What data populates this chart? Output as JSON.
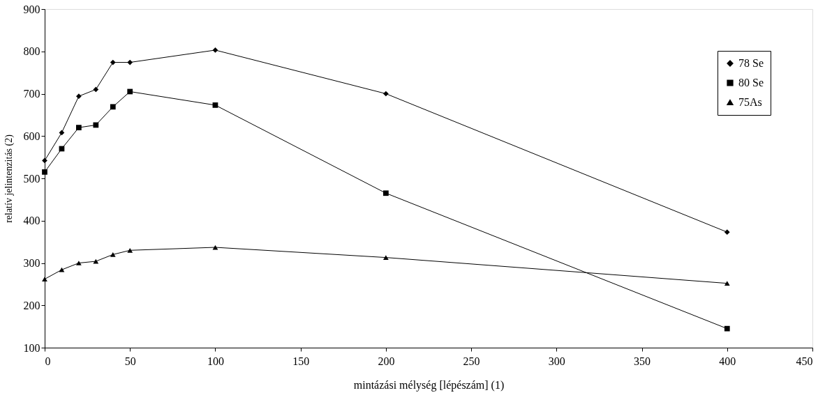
{
  "chart_data": {
    "type": "line",
    "xlabel": "mintázási mélység [lépészám] (1)",
    "ylabel": "relatív jelintenzitás (2)",
    "x": [
      0,
      10,
      20,
      30,
      40,
      50,
      100,
      200,
      400
    ],
    "series": [
      {
        "name": "78 Se",
        "color": "#000000",
        "marker": "diamond",
        "values": [
          542,
          608,
          694,
          710,
          774,
          774,
          803,
          700,
          373
        ]
      },
      {
        "name": "80 Se",
        "color": "#000000",
        "marker": "square",
        "values": [
          515,
          570,
          620,
          626,
          669,
          705,
          673,
          465,
          145
        ]
      },
      {
        "name": "75As",
        "color": "#000000",
        "marker": "triangle",
        "values": [
          262,
          284,
          300,
          304,
          320,
          330,
          337,
          313,
          252
        ]
      }
    ],
    "xlim": [
      0,
      450
    ],
    "xticks": [
      0,
      50,
      100,
      150,
      200,
      250,
      300,
      350,
      400,
      450
    ],
    "ylim": [
      100,
      900
    ],
    "yticks": [
      100,
      200,
      300,
      400,
      500,
      600,
      700,
      800,
      900
    ],
    "grid": false,
    "legend": "top right",
    "line_style": "solid"
  }
}
